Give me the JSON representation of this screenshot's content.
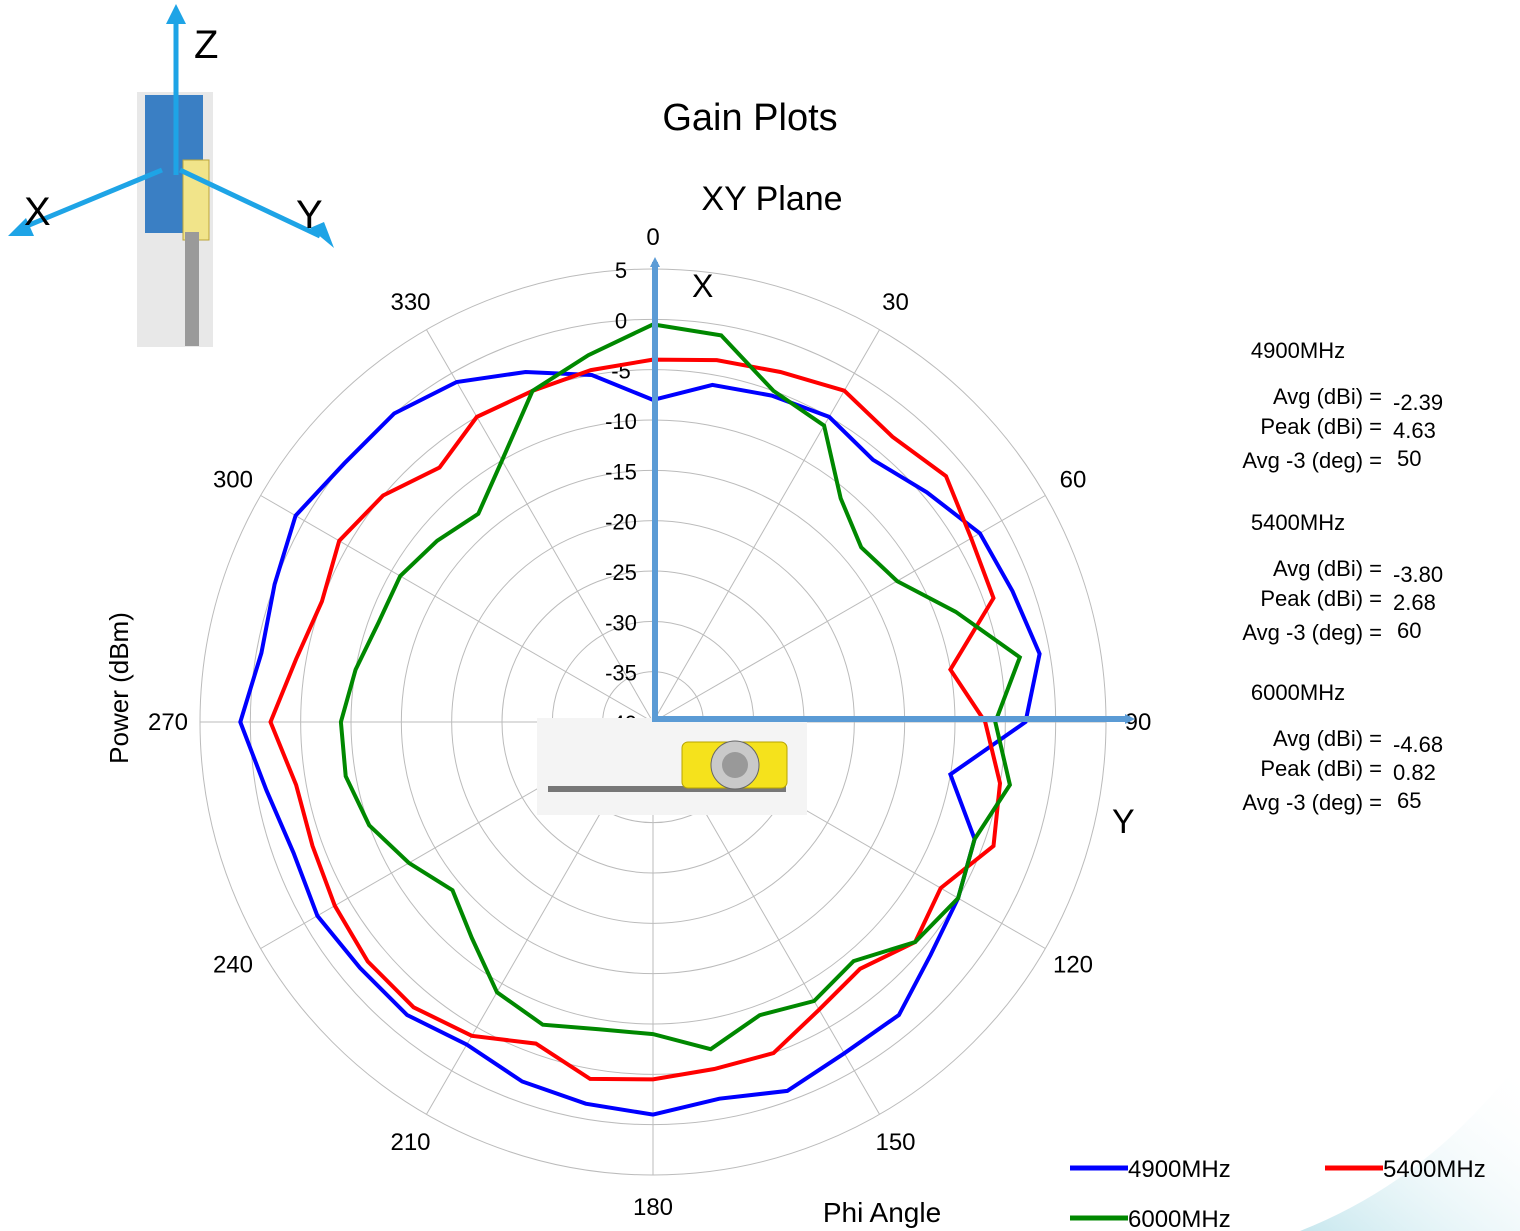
{
  "chart_data": {
    "type": "line",
    "subtype": "polar",
    "title": "Gain Plots",
    "subtitle": "XY Plane",
    "radial_label": "Power (dBm)",
    "angle_label": "Phi  Angle",
    "radial_range": [
      -40,
      5
    ],
    "radial_ticks": [
      "5",
      "0",
      "-5",
      "-10",
      "-15",
      "-20",
      "-25",
      "-30",
      "-35",
      "-40"
    ],
    "angle_ticks": [
      "0",
      "30",
      "60",
      "90",
      "120",
      "150",
      "180",
      "210",
      "240",
      "270",
      "300",
      "330"
    ],
    "angle_direction": "clockwise, 0 at top",
    "grid": true,
    "legend_position": "bottom-right",
    "theta_deg": [
      0,
      10,
      20,
      30,
      40,
      50,
      60,
      70,
      80,
      90,
      100,
      110,
      120,
      130,
      140,
      150,
      160,
      170,
      180,
      190,
      200,
      210,
      220,
      230,
      240,
      250,
      260,
      270,
      280,
      290,
      300,
      310,
      320,
      330,
      340,
      350
    ],
    "series": [
      {
        "name": "4900MHz",
        "color": "#0000ff",
        "values": [
          -8,
          -6,
          -5.5,
          -5,
          -6,
          -4.5,
          -2.5,
          -2,
          -1,
          -3,
          -10,
          -6,
          -5,
          -4,
          -2,
          -2,
          -1,
          -2,
          -1,
          -1.5,
          -2,
          -3,
          -2,
          -2,
          -1.5,
          -2,
          -1,
          1,
          -0.5,
          0,
          1,
          0,
          0,
          -1,
          -3,
          -5
        ]
      },
      {
        "name": "5400MHz",
        "color": "#ff0000",
        "values": [
          -4,
          -3.5,
          -3,
          -2,
          -3,
          -2,
          -3.5,
          -4,
          -10,
          -7,
          -5,
          -4,
          -7,
          -6,
          -8,
          -7,
          -5,
          -5,
          -4.5,
          -4,
          -6,
          -4,
          -3,
          -3,
          -3.5,
          -4,
          -4,
          -2,
          -4,
          -5,
          -4,
          -5,
          -7,
          -5,
          -5,
          -4.5
        ]
      },
      {
        "name": "6000MHz",
        "color": "#008800",
        "values": [
          -0.5,
          -1,
          -5,
          -6,
          -11,
          -13,
          -12,
          -8,
          -3,
          -6,
          -4,
          -6,
          -5,
          -6,
          -9,
          -8,
          -9,
          -7,
          -9,
          -9,
          -8,
          -9,
          -12,
          -14,
          -12,
          -10,
          -9,
          -9,
          -10,
          -11,
          -11,
          -12,
          -13,
          -10,
          -5,
          -3
        ]
      }
    ],
    "annotations": {
      "axis_x": "X",
      "axis_y": "Y",
      "axis_z": "Z",
      "icon_x": "X",
      "icon_y": "Y"
    },
    "stats": [
      {
        "freq": "4900MHz",
        "avg_label": "Avg (dBi) =",
        "avg": "-2.39",
        "peak_label": "Peak (dBi) =",
        "peak": "4.63",
        "bw_label": "Avg -3 (deg) =",
        "bw": "50"
      },
      {
        "freq": "5400MHz",
        "avg_label": "Avg (dBi) =",
        "avg": "-3.80",
        "peak_label": "Peak (dBi) =",
        "peak": "2.68",
        "bw_label": "Avg -3 (deg) =",
        "bw": "60"
      },
      {
        "freq": "6000MHz",
        "avg_label": "Avg (dBi) =",
        "avg": "-4.68",
        "peak_label": "Peak (dBi) =",
        "peak": "0.82",
        "bw_label": "Avg -3 (deg) =",
        "bw": "65"
      }
    ],
    "colors": {
      "axis_arrow": "#5b9bd5",
      "icon_arrow": "#1ea4e6",
      "grid": "#bbbbbb",
      "accent_corner": "#d6eef3"
    },
    "icons": [
      "antenna-photo",
      "board-photo",
      "axis-triad"
    ]
  }
}
